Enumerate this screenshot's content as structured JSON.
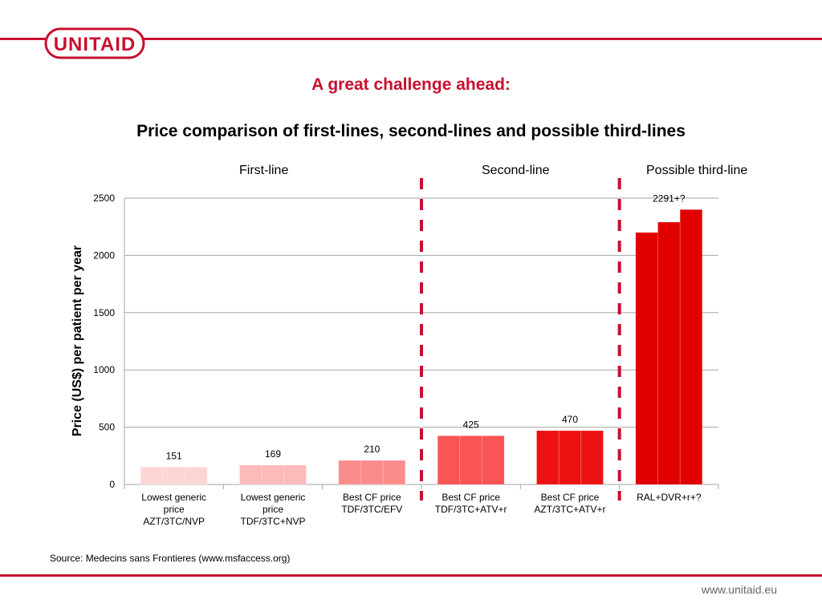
{
  "header": {
    "logo_text": "UNITAID",
    "headline": "A great challenge ahead:",
    "subtitle": "Price comparison of first-lines, second-lines and possible third-lines"
  },
  "sections": {
    "first": "First-line",
    "second": "Second-line",
    "third": "Possible third-line"
  },
  "footer": {
    "source": "Source: Medecins sans Frontieres (www.msfaccess.org)",
    "url": "www.unitaid.eu"
  },
  "colors": {
    "brand": "#c8102e",
    "bar_shades": [
      "#fdd5d5",
      "#fdbaba",
      "#fb8c8c",
      "#f95555",
      "#ee1111",
      "#e00000"
    ],
    "divider": "#c8102e",
    "grid": "#a6a6a6"
  },
  "chart_data": {
    "type": "bar",
    "ylabel": "Price (US$) per patient per year",
    "xlabel": "",
    "ylim": [
      0,
      2500
    ],
    "yticks": [
      0,
      500,
      1000,
      1500,
      2000,
      2500
    ],
    "grid": true,
    "categories": [
      [
        "Lowest generic",
        "price",
        "AZT/3TC/NVP"
      ],
      [
        "Lowest generic",
        "price",
        "TDF/3TC+NVP"
      ],
      [
        "Best CF price",
        "TDF/3TC/EFV"
      ],
      [
        "Best CF price",
        "TDF/3TC+ATV+r"
      ],
      [
        "Best CF price",
        "AZT/3TC+ATV+r"
      ],
      [
        "RAL+DVR+r+?"
      ]
    ],
    "values": [
      151,
      169,
      210,
      425,
      470,
      [
        2200,
        2291,
        2400
      ]
    ],
    "data_labels": [
      "151",
      "169",
      "210",
      "425",
      "470",
      "2291+?"
    ]
  }
}
